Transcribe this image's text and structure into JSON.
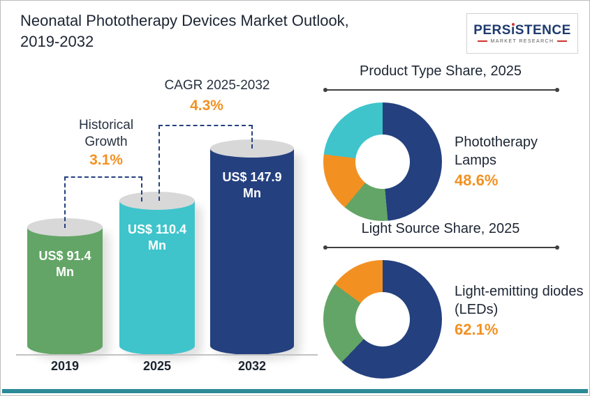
{
  "header": {
    "title_line1": "Neonatal Phototherapy Devices Market Outlook,",
    "title_line2": "2019-2032"
  },
  "logo": {
    "part1": "PERS",
    "i": "ı",
    "part2": "STENCE",
    "subtitle": "MARKET RESEARCH"
  },
  "colors": {
    "navy": "#24407f",
    "teal": "#3fc4cc",
    "green": "#63a566",
    "orange": "#f29122",
    "accent_text_orange": "#f29122",
    "bottom_strip": "#2b8a97"
  },
  "chart_data": [
    {
      "type": "bar",
      "title": "Neonatal Phototherapy Devices Market",
      "unit": "US$ Mn",
      "categories": [
        "2019",
        "2025",
        "2032"
      ],
      "values": [
        91.4,
        110.4,
        147.9
      ],
      "bar_labels": [
        "US$ 91.4 Mn",
        "US$ 110.4 Mn",
        "US$ 147.9 Mn"
      ],
      "bar_colors": [
        "#63a566",
        "#3fc4cc",
        "#24407f"
      ],
      "ylim": [
        0,
        160
      ],
      "annotations": [
        {
          "label": "Historical Growth",
          "value": "3.1%"
        },
        {
          "label": "CAGR 2025-2032",
          "value": "4.3%"
        }
      ]
    },
    {
      "type": "pie",
      "title": "Product Type  Share, 2025",
      "highlight_label": "Phototherapy Lamps",
      "highlight_value": "48.6%",
      "segments": [
        {
          "name": "Phototherapy Lamps",
          "value": 48.6,
          "color": "#24407f"
        },
        {
          "name": "segment-green",
          "value": 12.4,
          "color": "#63a566"
        },
        {
          "name": "segment-orange",
          "value": 16.0,
          "color": "#f29122"
        },
        {
          "name": "segment-teal",
          "value": 23.0,
          "color": "#3fc4cc"
        }
      ]
    },
    {
      "type": "pie",
      "title": "Light Source Share, 2025",
      "highlight_label": "Light-emitting diodes (LEDs)",
      "highlight_value": "62.1%",
      "segments": [
        {
          "name": "Light-emitting diodes (LEDs)",
          "value": 62.1,
          "color": "#24407f"
        },
        {
          "name": "segment-green",
          "value": 23.0,
          "color": "#63a566"
        },
        {
          "name": "segment-orange",
          "value": 14.9,
          "color": "#f29122"
        }
      ]
    }
  ]
}
